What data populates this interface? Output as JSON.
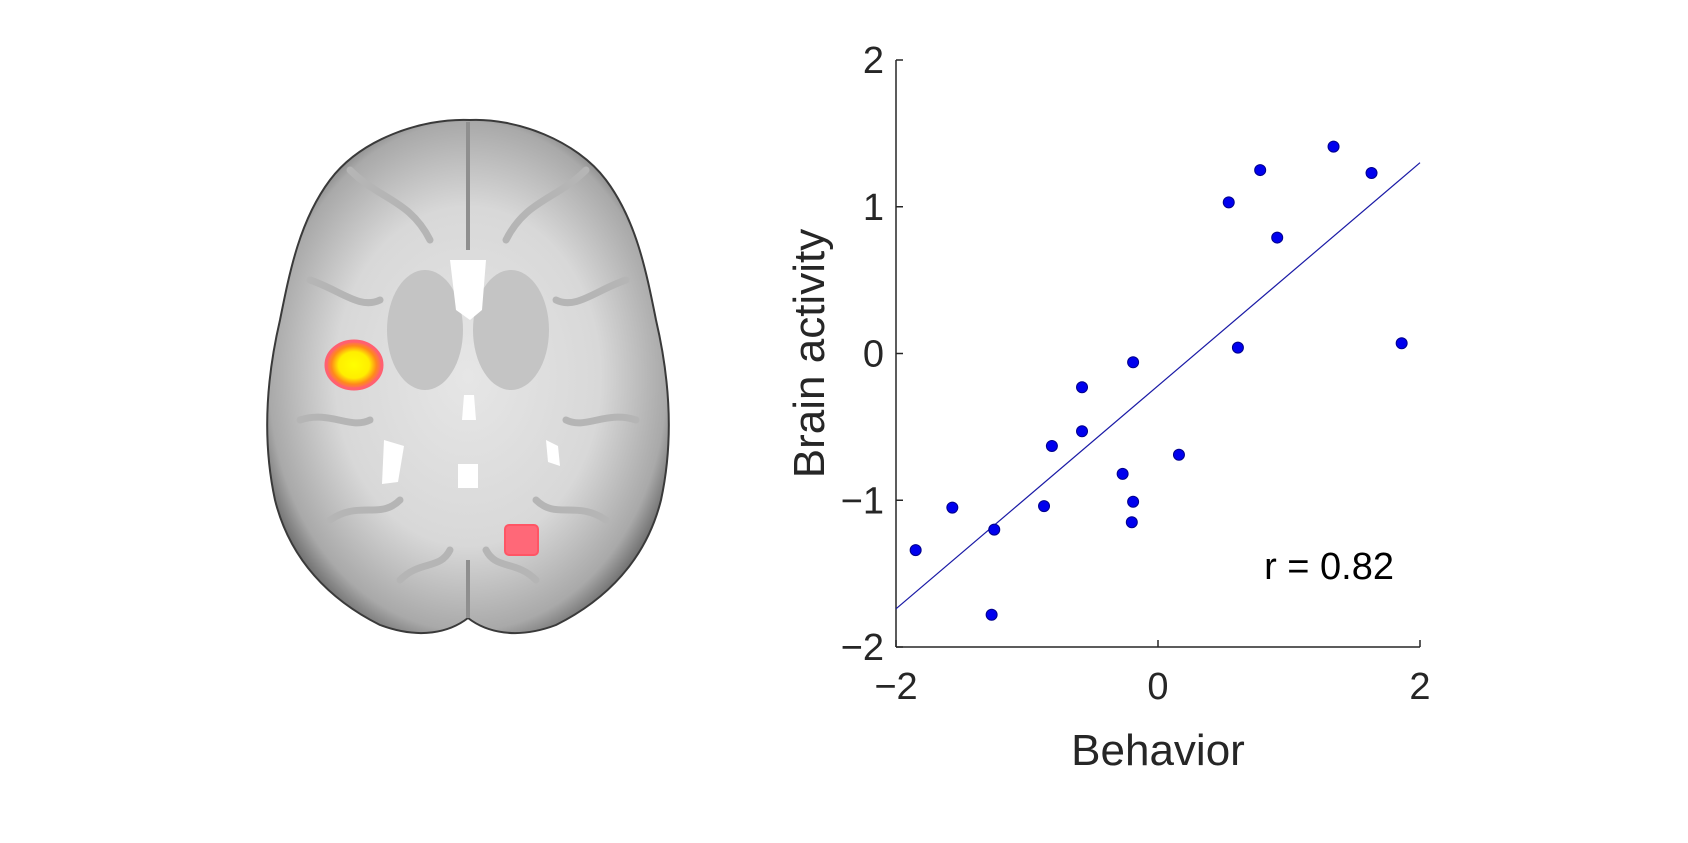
{
  "colors": {
    "point_fill": "#0000ee",
    "point_edge": "#00008b",
    "fit_line": "#1a1aa6",
    "axis": "#262626",
    "activation_peak": "#ffff00",
    "activation_mid": "#ff8a1a",
    "activation_low": "#ff6070",
    "brain_gray": "#cfcfcf"
  },
  "brain_image": {
    "view": "axial slice",
    "icon": "brain-axial-slice-icon"
  },
  "chart_data": {
    "type": "scatter",
    "title": "",
    "xlabel": "Behavior",
    "ylabel": "Brain activity",
    "xlim": [
      -2,
      2
    ],
    "ylim": [
      -2,
      2
    ],
    "xticks": [
      "-2",
      "0",
      "2"
    ],
    "yticks": [
      "-2",
      "-1",
      "0",
      "1",
      "2"
    ],
    "grid": false,
    "annotation": "r = 0.82",
    "points": [
      {
        "x": -1.85,
        "y": -1.34
      },
      {
        "x": -1.57,
        "y": -1.05
      },
      {
        "x": -1.25,
        "y": -1.2
      },
      {
        "x": -1.27,
        "y": -1.78
      },
      {
        "x": -0.87,
        "y": -1.04
      },
      {
        "x": -0.81,
        "y": -0.63
      },
      {
        "x": -0.58,
        "y": -0.23
      },
      {
        "x": -0.58,
        "y": -0.53
      },
      {
        "x": -0.27,
        "y": -0.82
      },
      {
        "x": -0.19,
        "y": -0.06
      },
      {
        "x": -0.19,
        "y": -1.01
      },
      {
        "x": -0.2,
        "y": -1.15
      },
      {
        "x": 0.16,
        "y": -0.69
      },
      {
        "x": 0.54,
        "y": 1.03
      },
      {
        "x": 0.61,
        "y": 0.04
      },
      {
        "x": 0.78,
        "y": 1.25
      },
      {
        "x": 0.91,
        "y": 0.79
      },
      {
        "x": 1.34,
        "y": 1.41
      },
      {
        "x": 1.63,
        "y": 1.23
      },
      {
        "x": 1.86,
        "y": 0.07
      }
    ],
    "fit_line": {
      "x": [
        -2,
        2
      ],
      "y": [
        -1.74,
        1.3
      ]
    }
  }
}
